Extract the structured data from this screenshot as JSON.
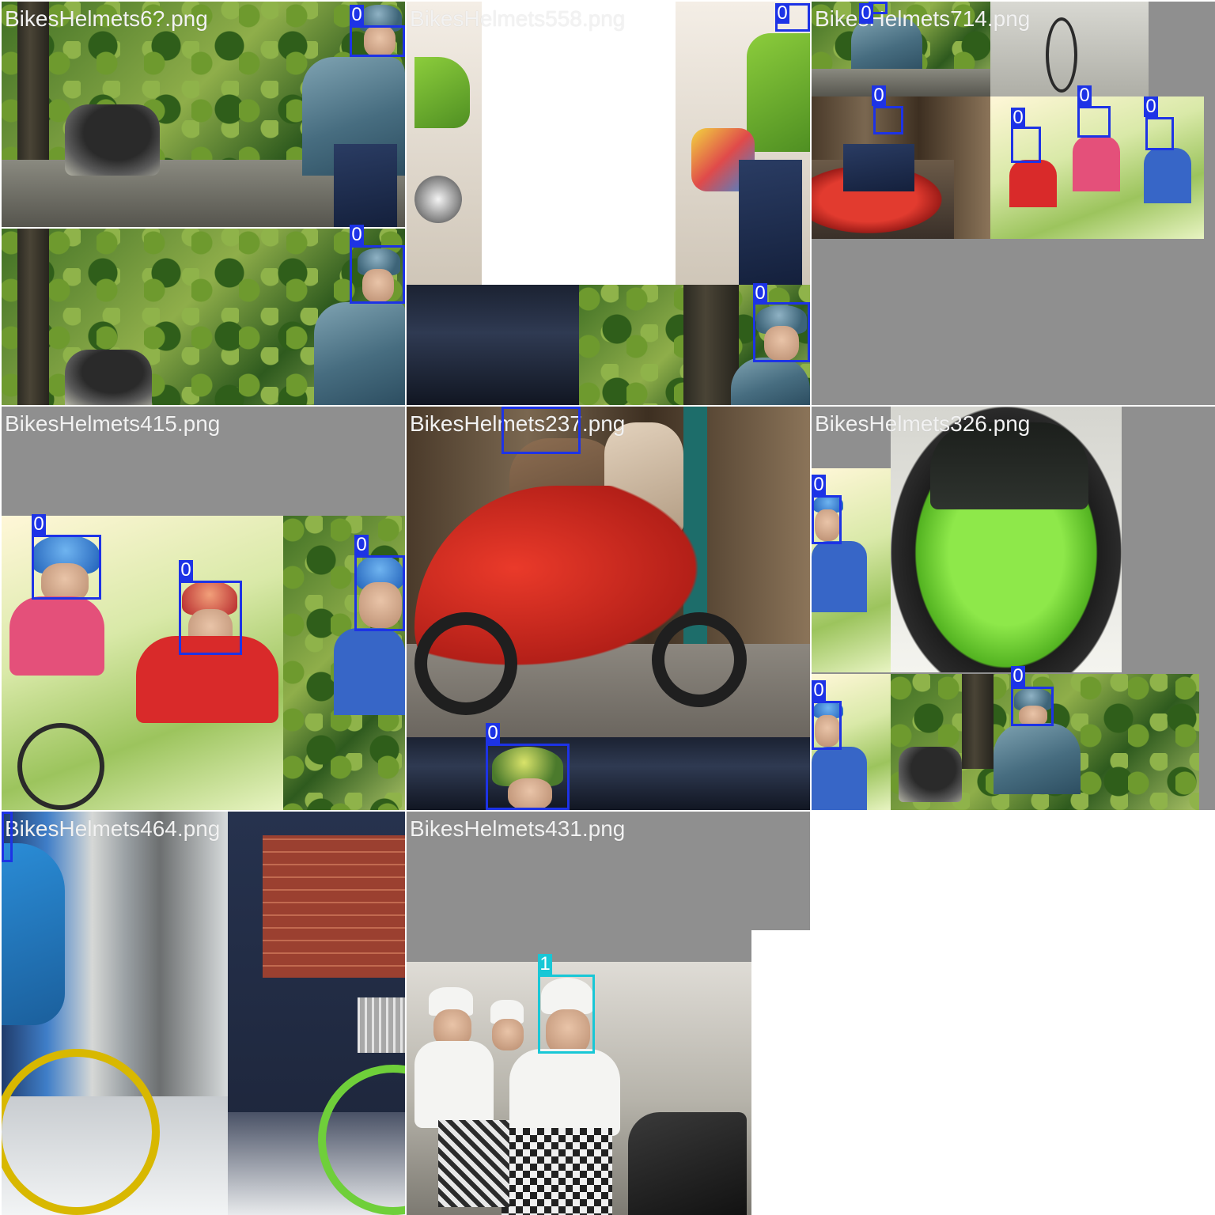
{
  "tiles": [
    {
      "filename": "BikesHelmets6?.png",
      "labels": [
        "0",
        "0"
      ]
    },
    {
      "filename": "BikesHelmets558.png",
      "labels": [
        "0",
        "0"
      ]
    },
    {
      "filename": "BikesHelmets714.png",
      "labels": [
        "0",
        "0",
        "0",
        "0",
        "0"
      ]
    },
    {
      "filename": "BikesHelmets415.png",
      "labels": [
        "0",
        "0",
        "0"
      ]
    },
    {
      "filename": "BikesHelmets237.png",
      "labels": [
        "0",
        "0"
      ]
    },
    {
      "filename": "BikesHelmets326.png",
      "labels": [
        "0",
        "0",
        "0"
      ]
    },
    {
      "filename": "BikesHelmets464.png",
      "labels": [
        "0"
      ]
    },
    {
      "filename": "BikesHelmets431.png",
      "labels": [
        "1"
      ]
    }
  ],
  "classes": {
    "0": {
      "color": "#1d33e6"
    },
    "1": {
      "color": "#18c7d6"
    }
  }
}
